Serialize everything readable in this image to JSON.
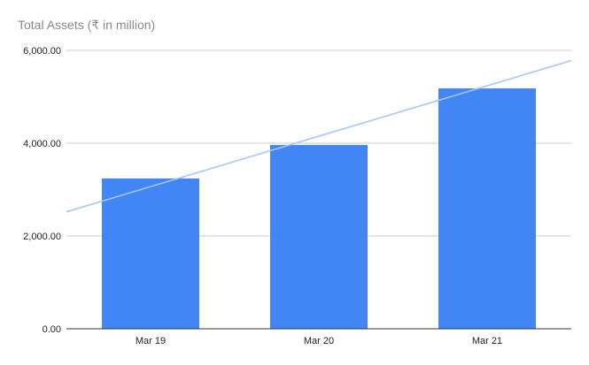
{
  "chart_data": {
    "type": "bar",
    "title": "Total Assets (₹ in million)",
    "categories": [
      "Mar 19",
      "Mar 20",
      "Mar 21"
    ],
    "values": [
      3240,
      3960,
      5180
    ],
    "ylim": [
      0,
      6000
    ],
    "yticks": [
      0,
      2000,
      4000,
      6000
    ],
    "ytick_labels": [
      "0.00",
      "2,000.00",
      "4,000.00",
      "6,000.00"
    ],
    "grid": true,
    "legend": "none",
    "trendline": {
      "type": "linear",
      "start_value": 2520,
      "end_value": 5780
    },
    "colors": {
      "bar": "#4285f4",
      "trendline": "#a7c7fa",
      "grid": "#cccccc",
      "axis": "#333333",
      "tick_text": "#222222",
      "title_text": "#8a8a8a"
    }
  }
}
